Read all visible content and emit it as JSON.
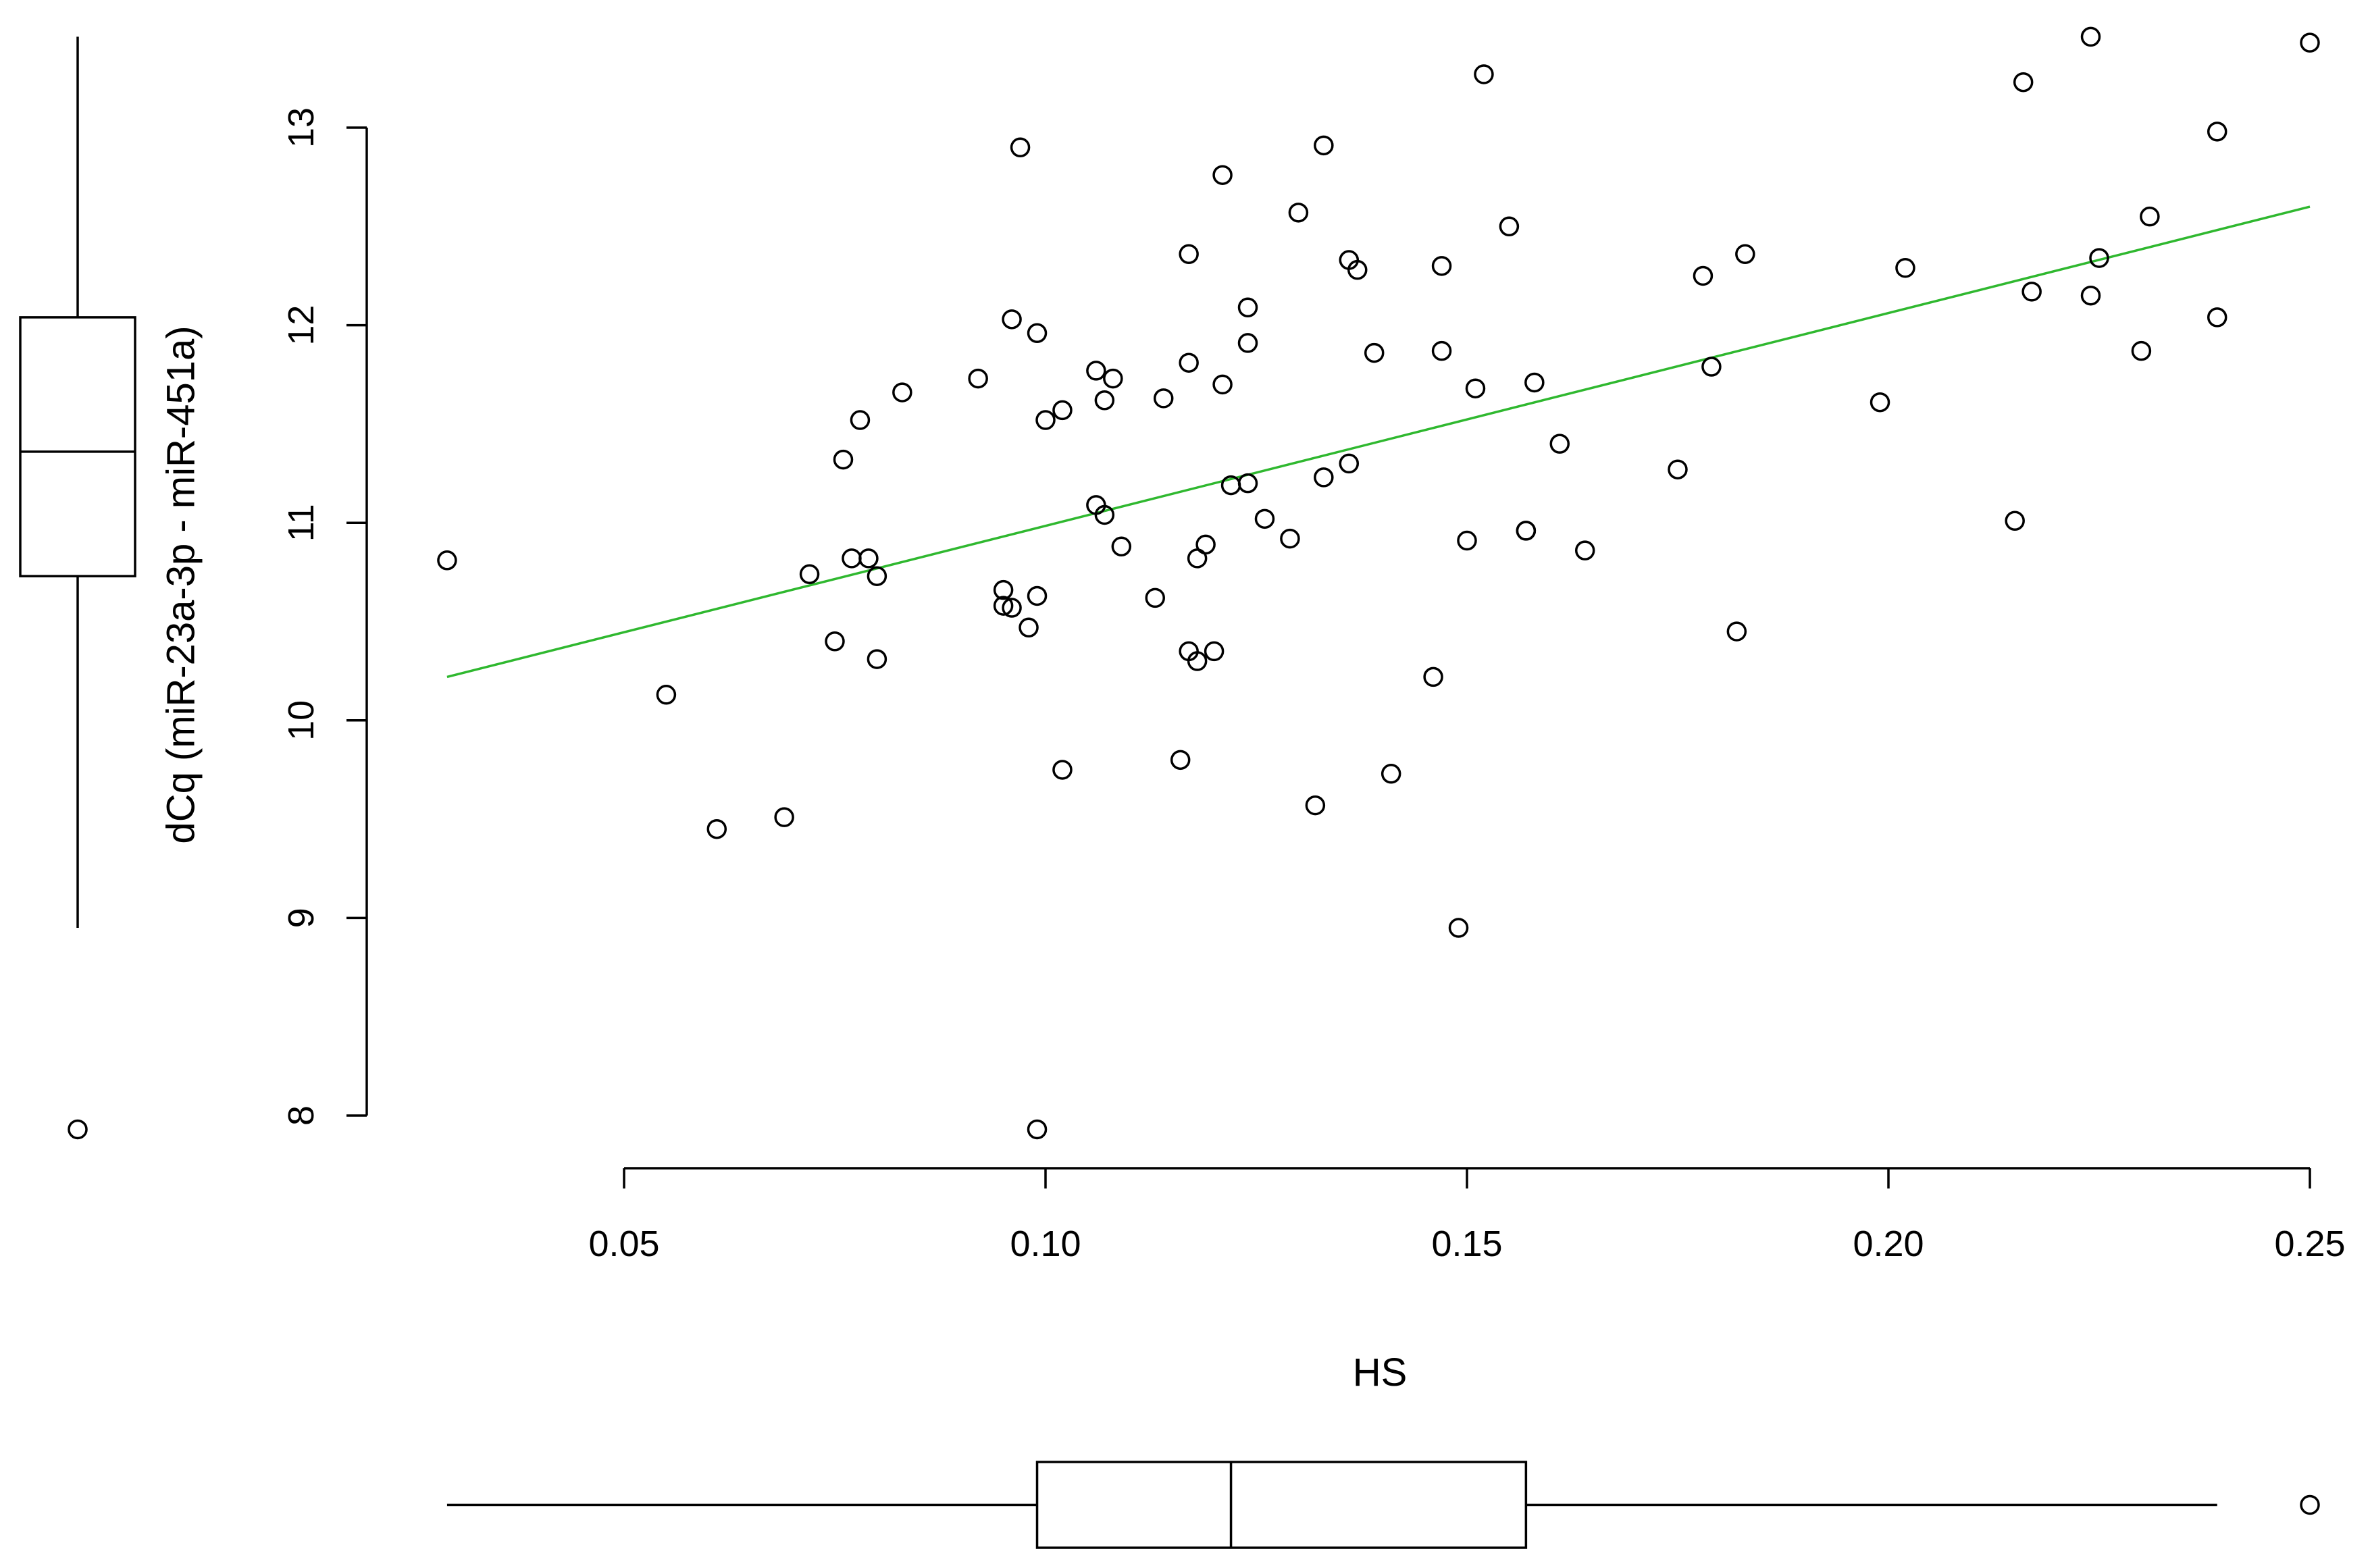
{
  "chart_data": {
    "type": "scatter",
    "xlabel": "HS",
    "ylabel": "dCq (miR-23a-3p - miR-451a)",
    "xlim": [
      0.05,
      0.25
    ],
    "ylim": [
      8,
      13
    ],
    "x_ticks": [
      0.05,
      0.1,
      0.15,
      0.2,
      0.25
    ],
    "x_tick_labels": [
      "0.05",
      "0.10",
      "0.15",
      "0.20",
      "0.25"
    ],
    "y_ticks": [
      8,
      9,
      10,
      11,
      12,
      13
    ],
    "y_tick_labels": [
      "8",
      "9",
      "10",
      "11",
      "12",
      "13"
    ],
    "grid": false,
    "points": [
      {
        "x": 0.029,
        "y": 10.81
      },
      {
        "x": 0.055,
        "y": 10.13
      },
      {
        "x": 0.061,
        "y": 9.45
      },
      {
        "x": 0.069,
        "y": 9.51
      },
      {
        "x": 0.072,
        "y": 10.74
      },
      {
        "x": 0.075,
        "y": 10.4
      },
      {
        "x": 0.076,
        "y": 11.32
      },
      {
        "x": 0.077,
        "y": 10.82
      },
      {
        "x": 0.078,
        "y": 11.52
      },
      {
        "x": 0.079,
        "y": 10.82
      },
      {
        "x": 0.08,
        "y": 10.73
      },
      {
        "x": 0.08,
        "y": 10.31
      },
      {
        "x": 0.083,
        "y": 11.66
      },
      {
        "x": 0.092,
        "y": 11.73
      },
      {
        "x": 0.095,
        "y": 10.66
      },
      {
        "x": 0.095,
        "y": 10.58
      },
      {
        "x": 0.096,
        "y": 10.57
      },
      {
        "x": 0.096,
        "y": 12.03
      },
      {
        "x": 0.097,
        "y": 12.9
      },
      {
        "x": 0.098,
        "y": 10.47
      },
      {
        "x": 0.099,
        "y": 11.96
      },
      {
        "x": 0.099,
        "y": 10.63
      },
      {
        "x": 0.1,
        "y": 11.52
      },
      {
        "x": 0.102,
        "y": 11.57
      },
      {
        "x": 0.102,
        "y": 9.75
      },
      {
        "x": 0.099,
        "y": 7.93
      },
      {
        "x": 0.106,
        "y": 11.09
      },
      {
        "x": 0.106,
        "y": 11.77
      },
      {
        "x": 0.107,
        "y": 11.62
      },
      {
        "x": 0.107,
        "y": 11.04
      },
      {
        "x": 0.108,
        "y": 11.73
      },
      {
        "x": 0.109,
        "y": 10.88
      },
      {
        "x": 0.113,
        "y": 10.62
      },
      {
        "x": 0.114,
        "y": 11.63
      },
      {
        "x": 0.116,
        "y": 9.8
      },
      {
        "x": 0.117,
        "y": 12.36
      },
      {
        "x": 0.117,
        "y": 11.81
      },
      {
        "x": 0.117,
        "y": 10.35
      },
      {
        "x": 0.118,
        "y": 10.3
      },
      {
        "x": 0.118,
        "y": 10.82
      },
      {
        "x": 0.119,
        "y": 10.89
      },
      {
        "x": 0.12,
        "y": 10.35
      },
      {
        "x": 0.121,
        "y": 12.76
      },
      {
        "x": 0.121,
        "y": 11.7
      },
      {
        "x": 0.122,
        "y": 11.19
      },
      {
        "x": 0.124,
        "y": 11.2
      },
      {
        "x": 0.124,
        "y": 11.91
      },
      {
        "x": 0.124,
        "y": 12.09
      },
      {
        "x": 0.126,
        "y": 11.02
      },
      {
        "x": 0.129,
        "y": 10.92
      },
      {
        "x": 0.13,
        "y": 12.57
      },
      {
        "x": 0.132,
        "y": 9.57
      },
      {
        "x": 0.133,
        "y": 12.91
      },
      {
        "x": 0.133,
        "y": 11.23
      },
      {
        "x": 0.136,
        "y": 12.33
      },
      {
        "x": 0.136,
        "y": 11.3
      },
      {
        "x": 0.137,
        "y": 12.28
      },
      {
        "x": 0.139,
        "y": 11.86
      },
      {
        "x": 0.141,
        "y": 9.73
      },
      {
        "x": 0.146,
        "y": 10.22
      },
      {
        "x": 0.147,
        "y": 12.3
      },
      {
        "x": 0.147,
        "y": 11.87
      },
      {
        "x": 0.149,
        "y": 8.95
      },
      {
        "x": 0.15,
        "y": 10.91
      },
      {
        "x": 0.151,
        "y": 11.68
      },
      {
        "x": 0.152,
        "y": 13.27
      },
      {
        "x": 0.155,
        "y": 12.5
      },
      {
        "x": 0.157,
        "y": 10.96
      },
      {
        "x": 0.157,
        "y": 10.96
      },
      {
        "x": 0.158,
        "y": 11.71
      },
      {
        "x": 0.161,
        "y": 11.4
      },
      {
        "x": 0.164,
        "y": 10.86
      },
      {
        "x": 0.175,
        "y": 11.27
      },
      {
        "x": 0.178,
        "y": 12.25
      },
      {
        "x": 0.179,
        "y": 11.79
      },
      {
        "x": 0.182,
        "y": 10.45
      },
      {
        "x": 0.183,
        "y": 12.36
      },
      {
        "x": 0.199,
        "y": 11.61
      },
      {
        "x": 0.202,
        "y": 12.29
      },
      {
        "x": 0.215,
        "y": 11.01
      },
      {
        "x": 0.216,
        "y": 13.23
      },
      {
        "x": 0.217,
        "y": 12.17
      },
      {
        "x": 0.224,
        "y": 13.46
      },
      {
        "x": 0.224,
        "y": 12.15
      },
      {
        "x": 0.225,
        "y": 12.34
      },
      {
        "x": 0.23,
        "y": 11.87
      },
      {
        "x": 0.231,
        "y": 12.55
      },
      {
        "x": 0.239,
        "y": 12.98
      },
      {
        "x": 0.239,
        "y": 12.04
      },
      {
        "x": 0.25,
        "y": 13.43
      }
    ],
    "fit_line": {
      "x": [
        0.029,
        0.25
      ],
      "y": [
        10.22,
        12.6
      ],
      "color": "#2fb82f"
    },
    "x_boxplot": {
      "whisker_low": 0.029,
      "q1": 0.099,
      "median": 0.122,
      "q3": 0.157,
      "whisker_high": 0.239,
      "outliers": [
        0.25
      ]
    },
    "y_boxplot": {
      "whisker_low": 8.95,
      "q1": 10.73,
      "median": 11.36,
      "q3": 12.04,
      "whisker_high": 13.46,
      "outliers": [
        7.93
      ]
    }
  }
}
